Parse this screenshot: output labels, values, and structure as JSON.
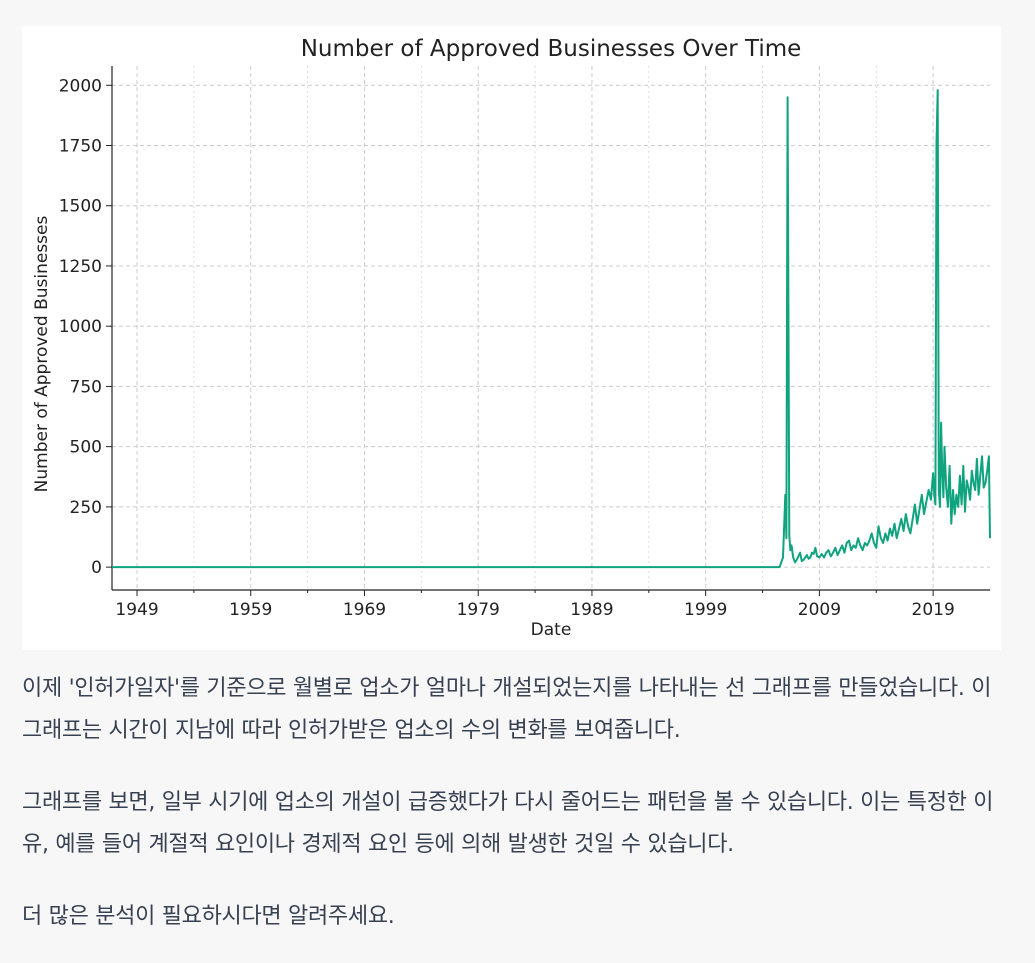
{
  "chart_data": {
    "type": "line",
    "title": "Number of Approved Businesses Over Time",
    "xlabel": "Date",
    "ylabel": "Number of Approved Businesses",
    "x_range": [
      1946.8,
      2024.0
    ],
    "ylim": [
      -95,
      2080
    ],
    "x_ticks": [
      1949,
      1959,
      1969,
      1979,
      1989,
      1999,
      2009,
      2019
    ],
    "y_ticks": [
      0,
      250,
      500,
      750,
      1000,
      1250,
      1500,
      1750,
      2000
    ],
    "grid": true,
    "line_color": "#10a37f",
    "series": [
      {
        "x": [
          1946.8,
          2005.5,
          2005.8,
          2006.0,
          2006.1,
          2006.2,
          2006.35,
          2006.45,
          2006.55,
          2006.7,
          2006.85,
          2007.0,
          2007.15,
          2007.3,
          2007.45,
          2007.6,
          2007.75,
          2007.9,
          2008.05,
          2008.2,
          2008.35,
          2008.5,
          2008.65,
          2008.8,
          2009.0,
          2009.2,
          2009.4,
          2009.6,
          2009.8,
          2010.0,
          2010.2,
          2010.4,
          2010.6,
          2010.8,
          2011.0,
          2011.2,
          2011.4,
          2011.6,
          2011.8,
          2012.0,
          2012.2,
          2012.4,
          2012.6,
          2012.8,
          2013.0,
          2013.2,
          2013.4,
          2013.6,
          2013.8,
          2014.0,
          2014.2,
          2014.4,
          2014.6,
          2014.8,
          2015.0,
          2015.2,
          2015.4,
          2015.6,
          2015.8,
          2016.0,
          2016.2,
          2016.4,
          2016.6,
          2016.8,
          2017.0,
          2017.2,
          2017.4,
          2017.6,
          2017.8,
          2018.0,
          2018.2,
          2018.4,
          2018.6,
          2018.8,
          2019.0,
          2019.1,
          2019.2,
          2019.3,
          2019.4,
          2019.5,
          2019.6,
          2019.7,
          2019.8,
          2019.9,
          2020.0,
          2020.15,
          2020.3,
          2020.45,
          2020.6,
          2020.75,
          2020.9,
          2021.05,
          2021.2,
          2021.35,
          2021.5,
          2021.65,
          2021.8,
          2021.95,
          2022.1,
          2022.25,
          2022.4,
          2022.55,
          2022.7,
          2022.85,
          2023.0,
          2023.15,
          2023.3,
          2023.45,
          2023.6,
          2023.75,
          2023.9,
          2024.0
        ],
        "y": [
          0,
          0,
          40,
          300,
          120,
          1950,
          130,
          70,
          90,
          40,
          20,
          30,
          45,
          60,
          25,
          30,
          40,
          50,
          35,
          40,
          60,
          55,
          80,
          45,
          40,
          55,
          40,
          60,
          70,
          45,
          60,
          80,
          50,
          70,
          90,
          60,
          100,
          110,
          70,
          90,
          80,
          120,
          90,
          70,
          100,
          90,
          110,
          140,
          100,
          80,
          170,
          120,
          100,
          140,
          110,
          160,
          130,
          180,
          120,
          160,
          200,
          150,
          220,
          170,
          140,
          200,
          260,
          180,
          240,
          300,
          220,
          270,
          320,
          280,
          390,
          300,
          260,
          1760,
          1980,
          320,
          250,
          600,
          400,
          290,
          500,
          330,
          250,
          420,
          180,
          320,
          220,
          300,
          250,
          380,
          260,
          420,
          230,
          360,
          330,
          280,
          400,
          350,
          320,
          450,
          300,
          380,
          460,
          330,
          350,
          400,
          460,
          120
        ]
      }
    ]
  },
  "message": {
    "p1": "이제 '인허가일자'를 기준으로 월별로 업소가 얼마나 개설되었는지를 나타내는 선 그래프를 만들었습니다. 이 그래프는 시간이 지남에 따라 인허가받은 업소의 수의 변화를 보여줍니다.",
    "p2": "그래프를 보면, 일부 시기에 업소의 개설이 급증했다가 다시 줄어드는 패턴을 볼 수 있습니다. 이는 특정한 이유, 예를 들어 계절적 요인이나 경제적 요인 등에 의해 발생한 것일 수 있습니다.",
    "p3": "더 많은 분석이 필요하시다면 알려주세요."
  }
}
